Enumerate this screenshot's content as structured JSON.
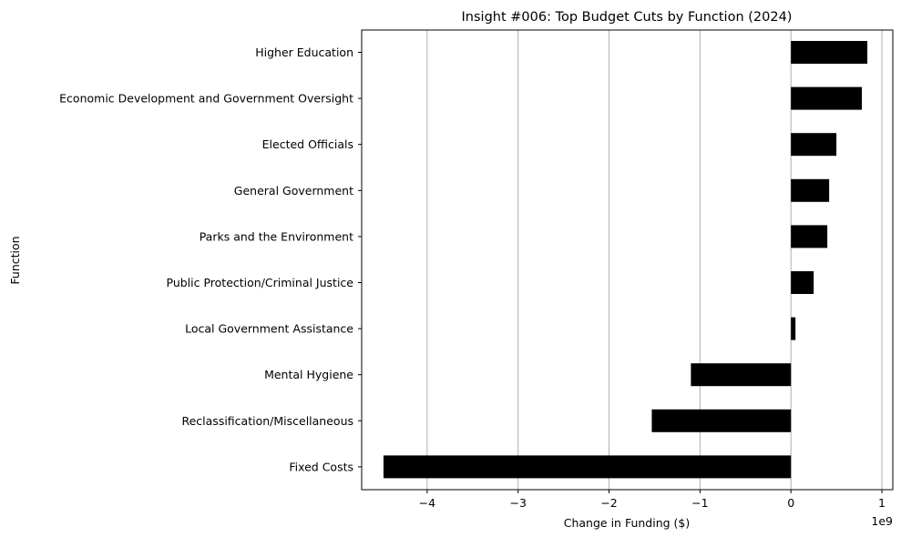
{
  "chart_data": {
    "type": "bar",
    "orientation": "horizontal",
    "title": "Insight #006: Top Budget Cuts by Function (2024)",
    "xlabel": "Change in Funding ($)",
    "ylabel": "Function",
    "x_offset_label": "1e9",
    "categories": [
      "Higher Education",
      "Economic Development and Government Oversight",
      "Elected Officials",
      "General Government",
      "Parks and the Environment",
      "Public Protection/Criminal Justice",
      "Local Government Assistance",
      "Mental Hygiene",
      "Reclassification/Miscellaneous",
      "Fixed Costs"
    ],
    "values": [
      0.84,
      0.78,
      0.5,
      0.42,
      0.4,
      0.25,
      0.05,
      -1.1,
      -1.53,
      -4.48
    ],
    "value_scale": 1000000000,
    "xlim": [
      -4.72,
      1.12
    ],
    "xticks": [
      -4,
      -3,
      -2,
      -1,
      0,
      1
    ],
    "xtick_labels": [
      "−4",
      "−3",
      "−2",
      "−1",
      "0",
      "1"
    ],
    "grid": "x",
    "bar_color": "#000000",
    "grid_color": "#b0b0b0"
  }
}
